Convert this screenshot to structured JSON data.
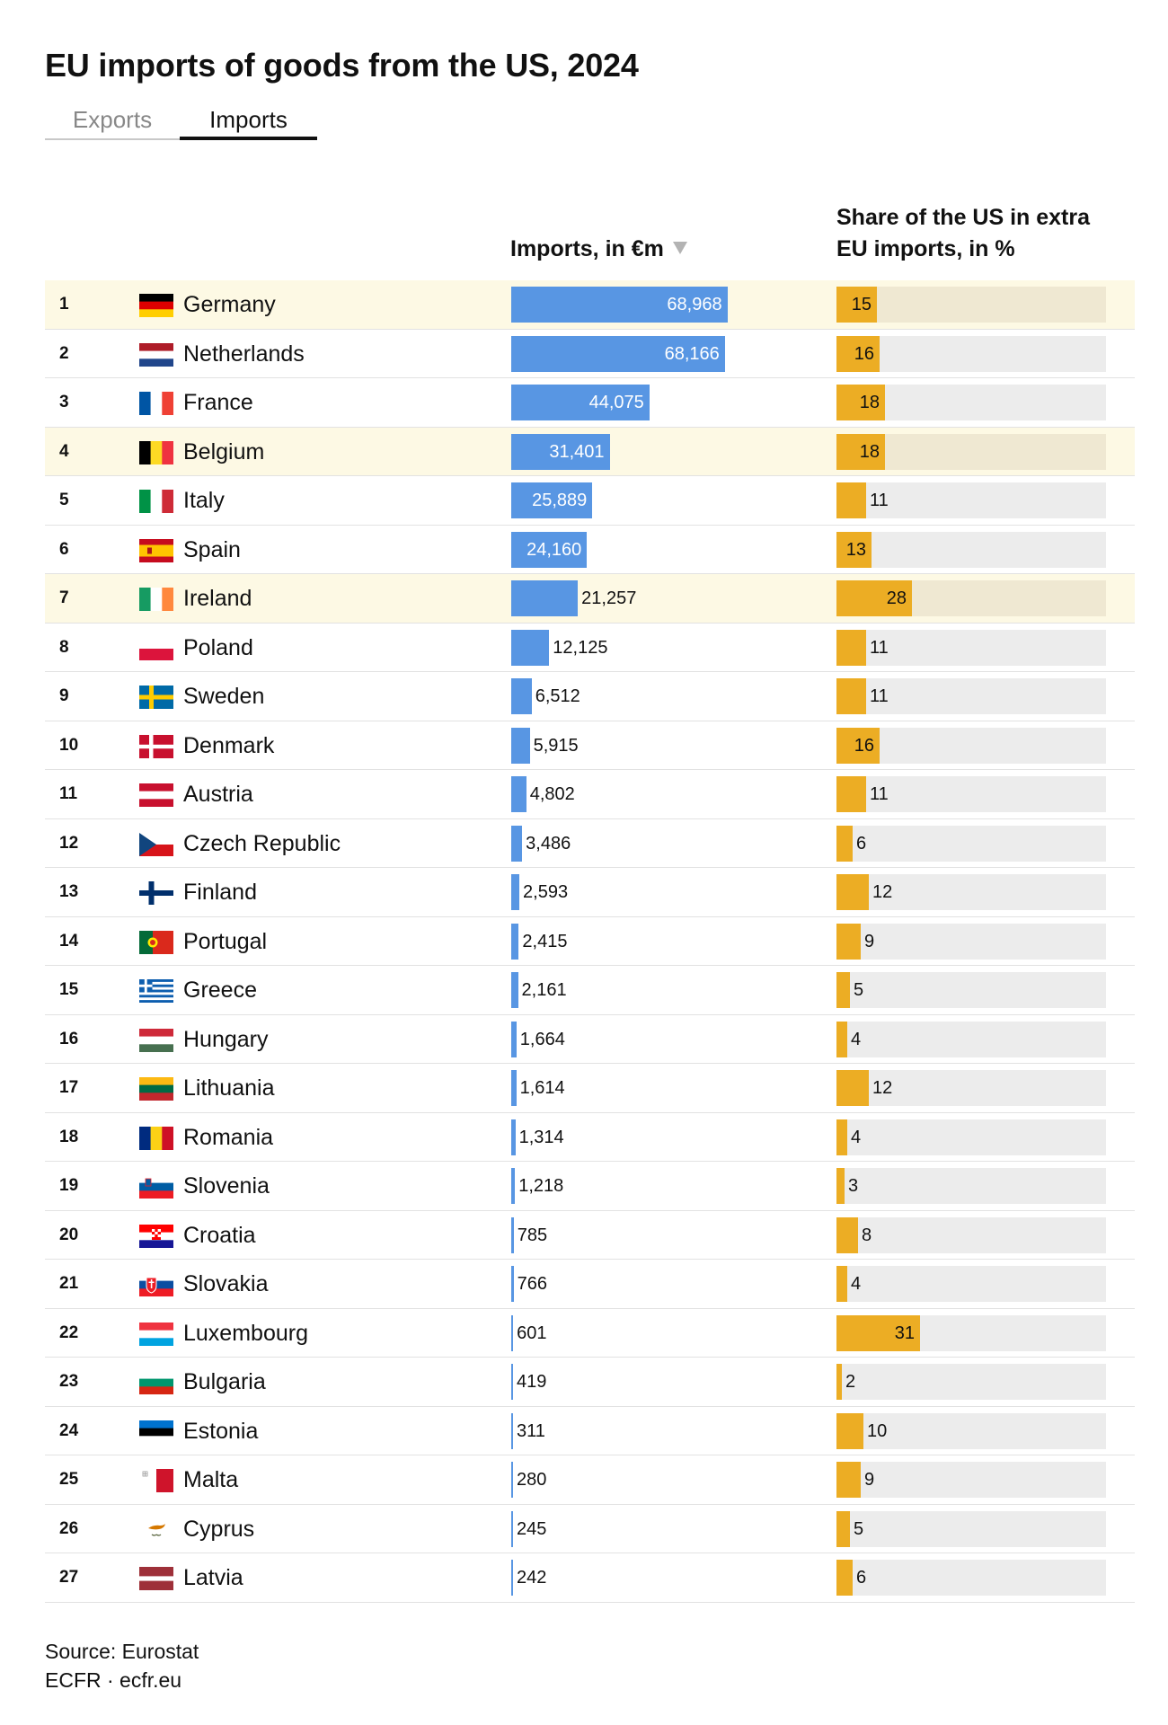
{
  "title": "EU imports of goods from the US, 2024",
  "tabs": {
    "exports": "Exports",
    "imports": "Imports",
    "active": "imports"
  },
  "headers": {
    "imports": "Imports, in €m",
    "share_line1": "Share of the US in extra",
    "share_line2": "EU imports, in %"
  },
  "footer": {
    "source": "Source: Eurostat",
    "credit": "ECFR · ecfr.eu"
  },
  "colors": {
    "imports_bar": "#5896e3",
    "share_bar": "#ecad24",
    "share_track": "#ececec",
    "highlight_row": "#fdf9e4"
  },
  "chart_data": {
    "type": "table",
    "columns": [
      "Rank",
      "Country",
      "Imports, in €m",
      "Share of the US in extra EU imports, in %"
    ],
    "imports_scale_max": 86000,
    "share_scale_max": 100,
    "highlighted": [
      "Germany",
      "Belgium",
      "Ireland"
    ],
    "rows": [
      {
        "rank": 1,
        "country": "Germany",
        "flag": "germany-flag-icon",
        "imports": 68968,
        "imports_label": "68,968",
        "share": 15
      },
      {
        "rank": 2,
        "country": "Netherlands",
        "flag": "netherlands-flag-icon",
        "imports": 68166,
        "imports_label": "68,166",
        "share": 16
      },
      {
        "rank": 3,
        "country": "France",
        "flag": "france-flag-icon",
        "imports": 44075,
        "imports_label": "44,075",
        "share": 18
      },
      {
        "rank": 4,
        "country": "Belgium",
        "flag": "belgium-flag-icon",
        "imports": 31401,
        "imports_label": "31,401",
        "share": 18
      },
      {
        "rank": 5,
        "country": "Italy",
        "flag": "italy-flag-icon",
        "imports": 25889,
        "imports_label": "25,889",
        "share": 11
      },
      {
        "rank": 6,
        "country": "Spain",
        "flag": "spain-flag-icon",
        "imports": 24160,
        "imports_label": "24,160",
        "share": 13
      },
      {
        "rank": 7,
        "country": "Ireland",
        "flag": "ireland-flag-icon",
        "imports": 21257,
        "imports_label": "21,257",
        "share": 28
      },
      {
        "rank": 8,
        "country": "Poland",
        "flag": "poland-flag-icon",
        "imports": 12125,
        "imports_label": "12,125",
        "share": 11
      },
      {
        "rank": 9,
        "country": "Sweden",
        "flag": "sweden-flag-icon",
        "imports": 6512,
        "imports_label": "6,512",
        "share": 11
      },
      {
        "rank": 10,
        "country": "Denmark",
        "flag": "denmark-flag-icon",
        "imports": 5915,
        "imports_label": "5,915",
        "share": 16
      },
      {
        "rank": 11,
        "country": "Austria",
        "flag": "austria-flag-icon",
        "imports": 4802,
        "imports_label": "4,802",
        "share": 11
      },
      {
        "rank": 12,
        "country": "Czech Republic",
        "flag": "czech-republic-flag-icon",
        "imports": 3486,
        "imports_label": "3,486",
        "share": 6
      },
      {
        "rank": 13,
        "country": "Finland",
        "flag": "finland-flag-icon",
        "imports": 2593,
        "imports_label": "2,593",
        "share": 12
      },
      {
        "rank": 14,
        "country": "Portugal",
        "flag": "portugal-flag-icon",
        "imports": 2415,
        "imports_label": "2,415",
        "share": 9
      },
      {
        "rank": 15,
        "country": "Greece",
        "flag": "greece-flag-icon",
        "imports": 2161,
        "imports_label": "2,161",
        "share": 5
      },
      {
        "rank": 16,
        "country": "Hungary",
        "flag": "hungary-flag-icon",
        "imports": 1664,
        "imports_label": "1,664",
        "share": 4
      },
      {
        "rank": 17,
        "country": "Lithuania",
        "flag": "lithuania-flag-icon",
        "imports": 1614,
        "imports_label": "1,614",
        "share": 12
      },
      {
        "rank": 18,
        "country": "Romania",
        "flag": "romania-flag-icon",
        "imports": 1314,
        "imports_label": "1,314",
        "share": 4
      },
      {
        "rank": 19,
        "country": "Slovenia",
        "flag": "slovenia-flag-icon",
        "imports": 1218,
        "imports_label": "1,218",
        "share": 3
      },
      {
        "rank": 20,
        "country": "Croatia",
        "flag": "croatia-flag-icon",
        "imports": 785,
        "imports_label": "785",
        "share": 8
      },
      {
        "rank": 21,
        "country": "Slovakia",
        "flag": "slovakia-flag-icon",
        "imports": 766,
        "imports_label": "766",
        "share": 4
      },
      {
        "rank": 22,
        "country": "Luxembourg",
        "flag": "luxembourg-flag-icon",
        "imports": 601,
        "imports_label": "601",
        "share": 31
      },
      {
        "rank": 23,
        "country": "Bulgaria",
        "flag": "bulgaria-flag-icon",
        "imports": 419,
        "imports_label": "419",
        "share": 2
      },
      {
        "rank": 24,
        "country": "Estonia",
        "flag": "estonia-flag-icon",
        "imports": 311,
        "imports_label": "311",
        "share": 10
      },
      {
        "rank": 25,
        "country": "Malta",
        "flag": "malta-flag-icon",
        "imports": 280,
        "imports_label": "280",
        "share": 9
      },
      {
        "rank": 26,
        "country": "Cyprus",
        "flag": "cyprus-flag-icon",
        "imports": 245,
        "imports_label": "245",
        "share": 5
      },
      {
        "rank": 27,
        "country": "Latvia",
        "flag": "latvia-flag-icon",
        "imports": 242,
        "imports_label": "242",
        "share": 6
      }
    ]
  }
}
